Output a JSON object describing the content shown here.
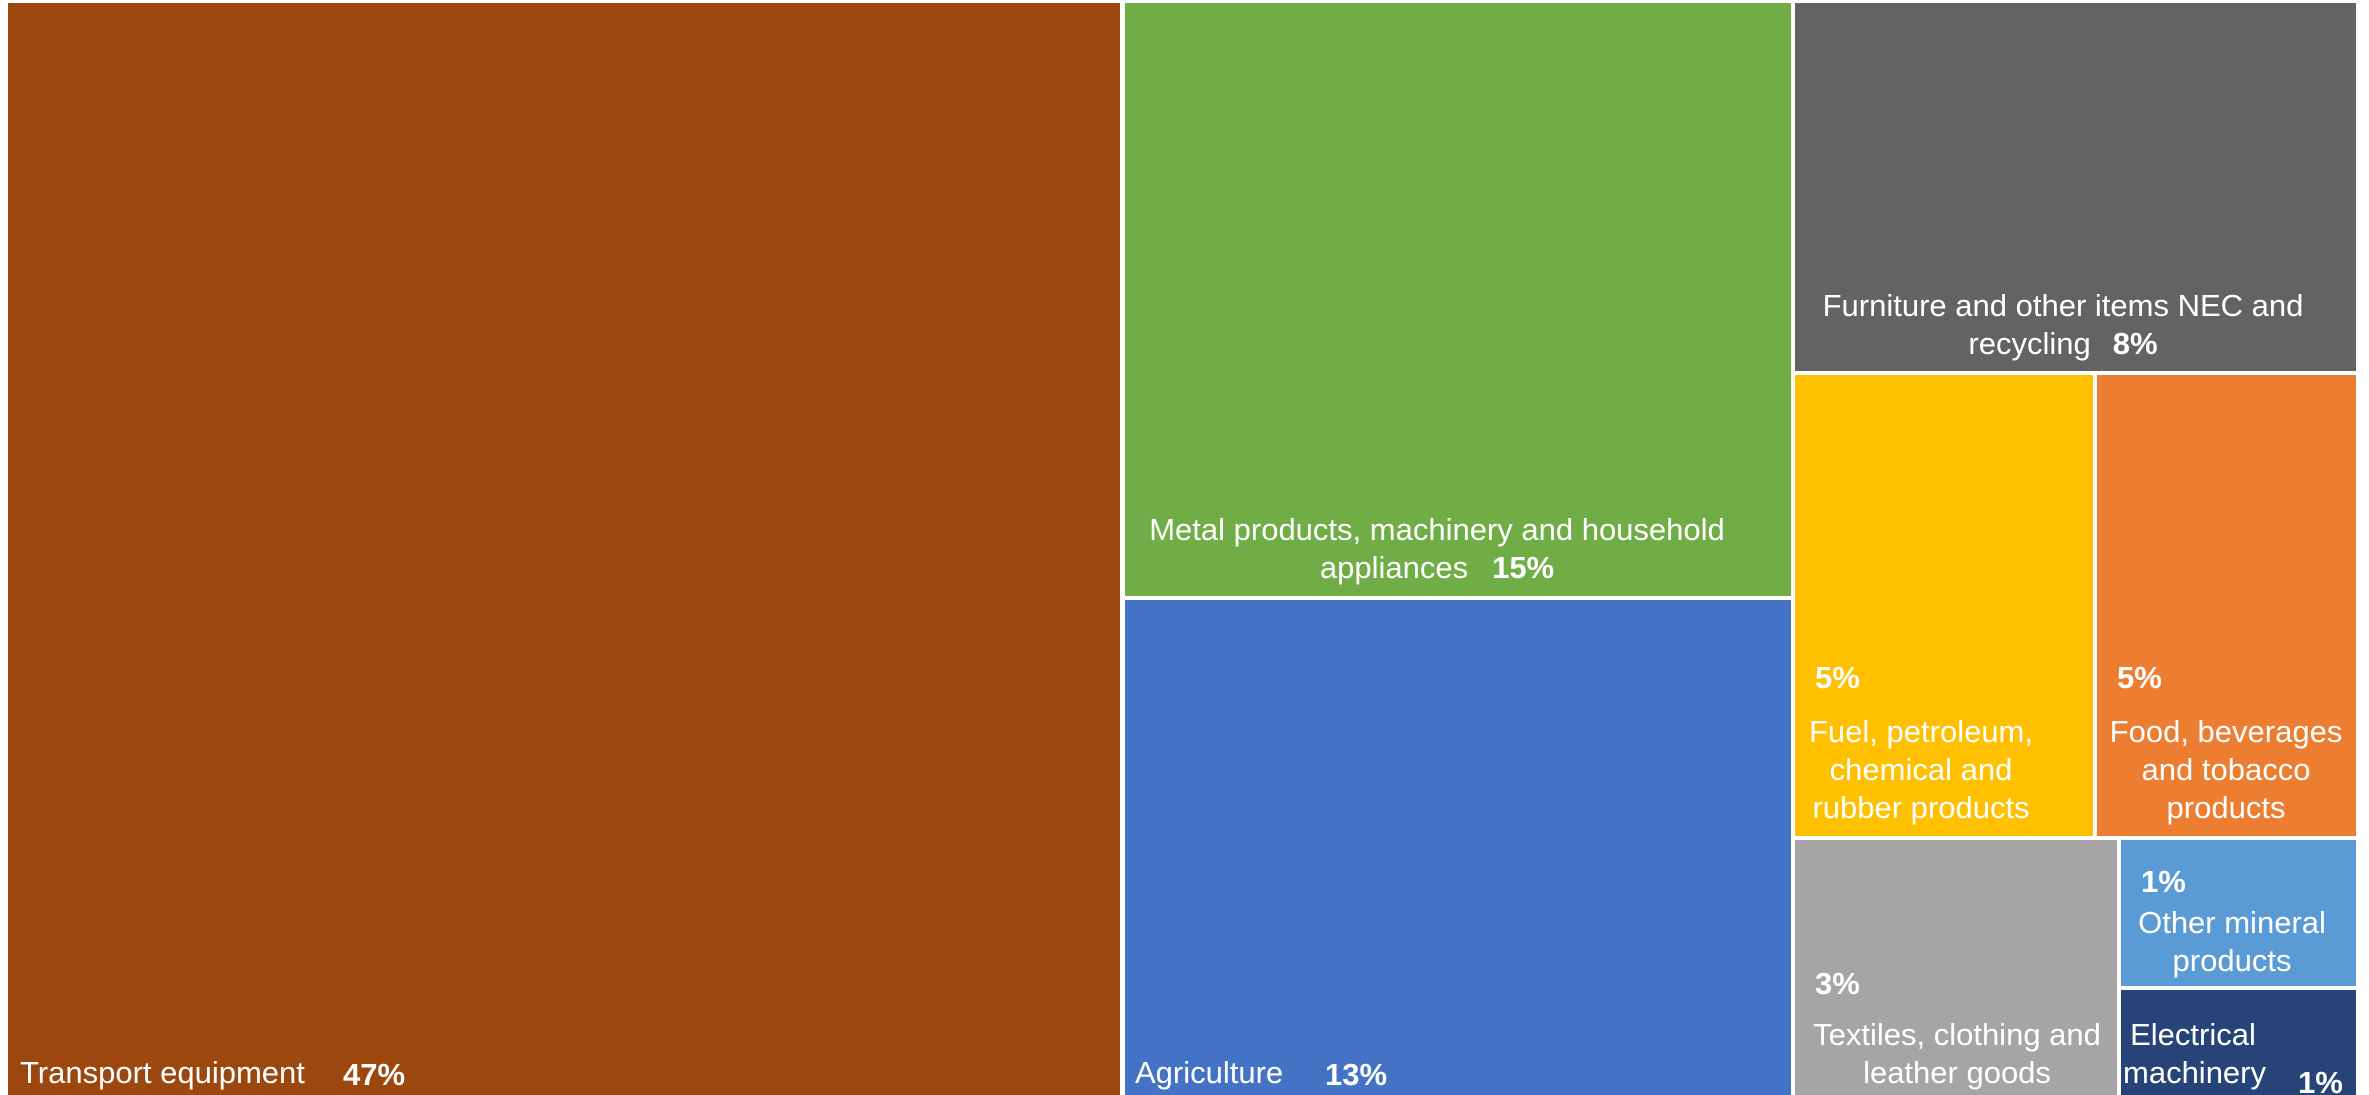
{
  "chart_data": {
    "type": "treemap",
    "title": "",
    "items": [
      {
        "label": "Transport equipment",
        "value": 47,
        "value_label": "47%",
        "color": "#9C470D"
      },
      {
        "label": "Metal products, machinery and household appliances",
        "value": 15,
        "value_label": "15%",
        "color": "#70AD47"
      },
      {
        "label": "Agriculture",
        "value": 13,
        "value_label": "13%",
        "color": "#4472C4"
      },
      {
        "label": "Furniture and other items NEC and recycling",
        "value": 8,
        "value_label": "8%",
        "color": "#636363"
      },
      {
        "label": "Fuel, petroleum, chemical and rubber products",
        "value": 5,
        "value_label": "5%",
        "color": "#FFC000"
      },
      {
        "label": "Food, beverages and tobacco products",
        "value": 5,
        "value_label": "5%",
        "color": "#ED7D31"
      },
      {
        "label": "Textiles, clothing and leather goods",
        "value": 3,
        "value_label": "3%",
        "color": "#A5A5A5"
      },
      {
        "label": "Other mineral products",
        "value": 1,
        "value_label": "1%",
        "color": "#5B9BD5"
      },
      {
        "label": "Electrical machinery",
        "value": 1,
        "value_label": "1%",
        "color": "#264478"
      }
    ]
  }
}
